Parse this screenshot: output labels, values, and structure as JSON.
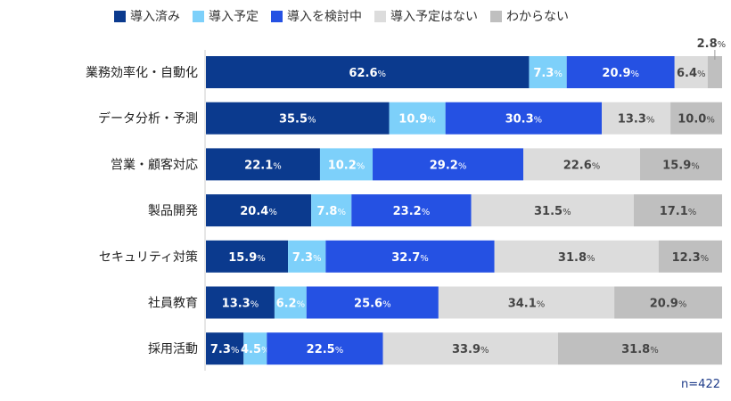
{
  "chart_data": {
    "type": "bar",
    "orientation": "horizontal",
    "stacked": true,
    "categories": [
      "業務効率化・自動化",
      "データ分析・予測",
      "営業・顧客対応",
      "製品開発",
      "セキュリティ対策",
      "社員教育",
      "採用活動"
    ],
    "series": [
      {
        "name": "導入済み",
        "color": "#0b3a8e",
        "label_color": "#ffffff",
        "values": [
          62.6,
          35.5,
          22.1,
          20.4,
          15.9,
          13.3,
          7.3
        ]
      },
      {
        "name": "導入予定",
        "color": "#7dd0fa",
        "label_color": "#ffffff",
        "values": [
          7.3,
          10.9,
          10.2,
          7.8,
          7.3,
          6.2,
          4.5
        ]
      },
      {
        "name": "導入を検討中",
        "color": "#2551e3",
        "label_color": "#ffffff",
        "values": [
          20.9,
          30.3,
          29.2,
          23.2,
          32.7,
          25.6,
          22.5
        ]
      },
      {
        "name": "導入予定はない",
        "color": "#dcdcdc",
        "label_color": "#444444",
        "values": [
          6.4,
          13.3,
          22.6,
          31.5,
          31.8,
          34.1,
          33.9
        ]
      },
      {
        "name": "わからない",
        "color": "#bfbfbf",
        "label_color": "#444444",
        "values": [
          2.8,
          10.0,
          15.9,
          17.1,
          12.3,
          20.9,
          31.8
        ]
      }
    ],
    "value_suffix": "%",
    "legend_position": "top",
    "grid": false,
    "xlim": [
      0,
      100
    ],
    "note": "n=422"
  }
}
